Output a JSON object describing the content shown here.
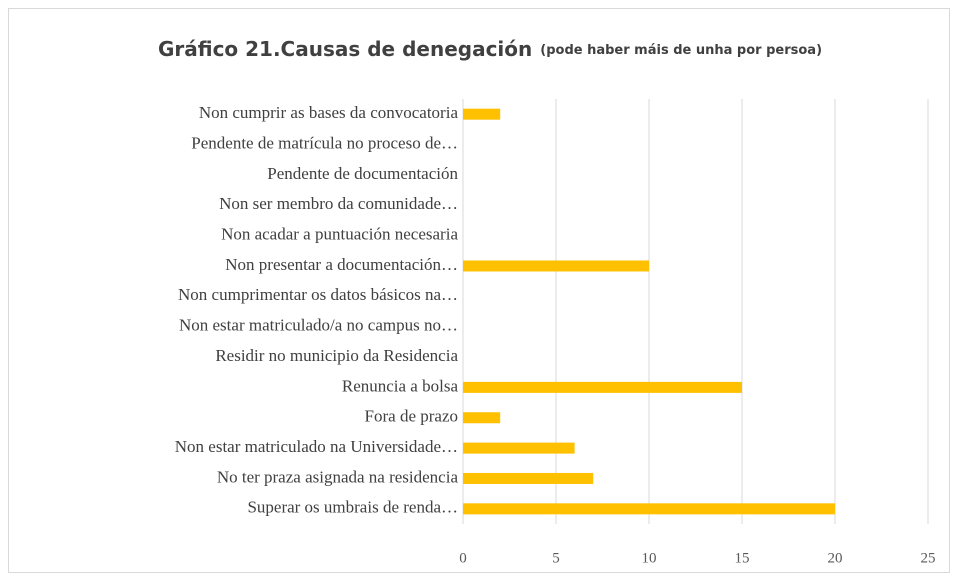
{
  "chart_data": {
    "type": "bar",
    "orientation": "horizontal",
    "title": "Gráfico 21.Causas de denegación",
    "subtitle": "(pode haber máis de unha por persoa)",
    "categories": [
      "Non cumprir as bases da convocatoria",
      "Pendente de matrícula no proceso de…",
      "Pendente de documentación",
      "Non ser membro da comunidade…",
      "Non acadar a puntuación necesaria",
      "Non presentar a documentación…",
      "Non cumprimentar os datos básicos na…",
      "Non estar matriculado/a no campus no…",
      "Residir no municipio da Residencia",
      "Renuncia a bolsa",
      "Fora de prazo",
      "Non estar matriculado na Universidade…",
      "No ter praza asignada na residencia",
      "Superar os umbrais de renda…"
    ],
    "values": [
      2,
      0,
      0,
      0,
      0,
      10,
      0,
      0,
      0,
      15,
      2,
      6,
      7,
      20
    ],
    "color": "#ffc000",
    "xlim": [
      0,
      25
    ],
    "xticks": [
      0,
      5,
      10,
      15,
      20,
      25
    ],
    "grid": true
  }
}
